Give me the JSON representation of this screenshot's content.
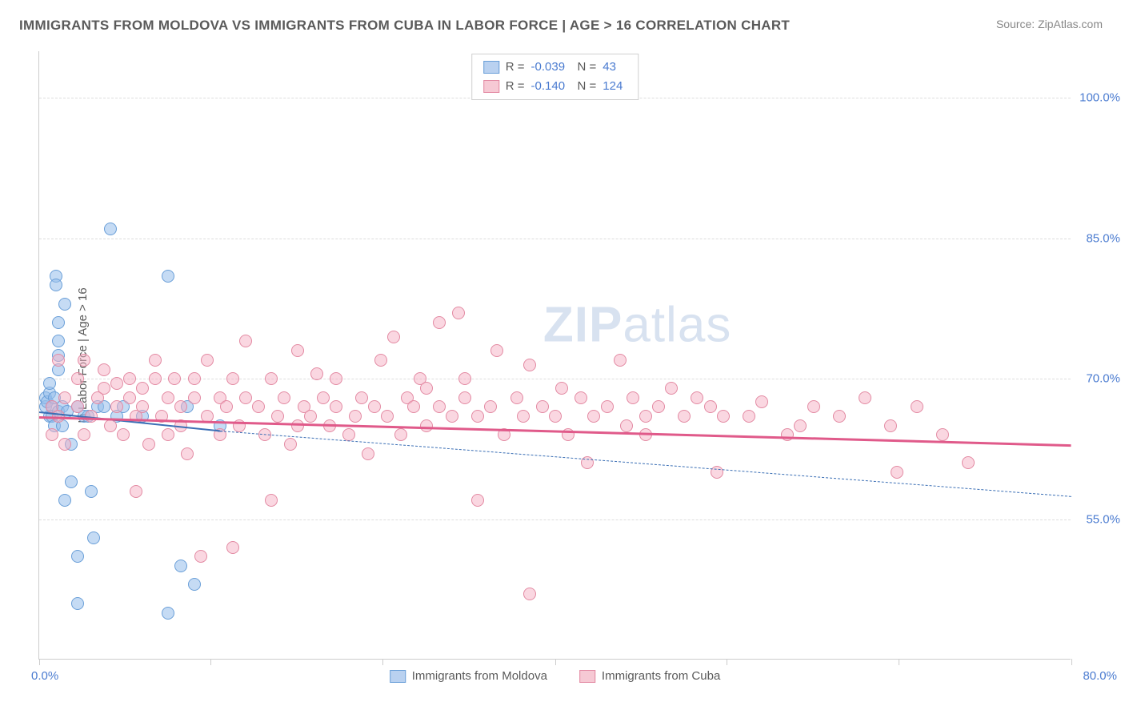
{
  "title": "IMMIGRANTS FROM MOLDOVA VS IMMIGRANTS FROM CUBA IN LABOR FORCE | AGE > 16 CORRELATION CHART",
  "source": "Source: ZipAtlas.com",
  "y_axis_label": "In Labor Force | Age > 16",
  "watermark_bold": "ZIP",
  "watermark_rest": "atlas",
  "chart": {
    "type": "scatter",
    "xlim": [
      0,
      80
    ],
    "ylim": [
      40,
      105
    ],
    "x_min_label": "0.0%",
    "x_max_label": "80.0%",
    "yticks": [
      55.0,
      70.0,
      85.0,
      100.0
    ],
    "ytick_labels": [
      "55.0%",
      "70.0%",
      "85.0%",
      "100.0%"
    ],
    "xtick_positions": [
      0,
      13.3,
      26.6,
      40,
      53.3,
      66.6,
      80
    ],
    "grid_color": "#dddddd",
    "background_color": "#ffffff",
    "marker_radius": 8,
    "marker_border_width": 1.5,
    "series": [
      {
        "name": "Immigrants from Moldova",
        "label": "Immigrants from Moldova",
        "fill": "#b9d1f0",
        "fill_alpha": "rgba(150,190,235,0.55)",
        "stroke": "#6a9fd8",
        "R_label": "R =",
        "R": "-0.039",
        "N_label": "N =",
        "N": "43",
        "trend": {
          "x1": 0,
          "y1": 66.5,
          "x2": 14,
          "y2": 64.5,
          "dash_to_x": 80,
          "dash_to_y": 57.5,
          "color": "#3b6fb5",
          "width": 2
        },
        "points": [
          [
            0.5,
            67
          ],
          [
            0.5,
            68
          ],
          [
            0.6,
            67.5
          ],
          [
            0.8,
            66
          ],
          [
            0.8,
            68.5
          ],
          [
            0.8,
            69.5
          ],
          [
            1,
            67
          ],
          [
            1,
            66
          ],
          [
            1.2,
            65
          ],
          [
            1.2,
            68
          ],
          [
            1.3,
            81
          ],
          [
            1.3,
            80
          ],
          [
            1.5,
            71
          ],
          [
            1.5,
            72.5
          ],
          [
            1.5,
            74
          ],
          [
            1.5,
            76
          ],
          [
            1.5,
            66.5
          ],
          [
            1.8,
            67
          ],
          [
            1.8,
            65
          ],
          [
            2,
            78
          ],
          [
            2,
            57
          ],
          [
            2.2,
            66.5
          ],
          [
            2.5,
            63
          ],
          [
            2.5,
            59
          ],
          [
            3,
            67
          ],
          [
            3,
            51
          ],
          [
            3,
            46
          ],
          [
            3.5,
            66
          ],
          [
            3.8,
            66
          ],
          [
            4,
            58
          ],
          [
            4.2,
            53
          ],
          [
            4.5,
            67
          ],
          [
            5,
            67
          ],
          [
            5.5,
            86
          ],
          [
            6,
            66
          ],
          [
            6.5,
            67
          ],
          [
            8,
            66
          ],
          [
            10,
            81
          ],
          [
            10,
            45
          ],
          [
            11,
            50
          ],
          [
            11.5,
            67
          ],
          [
            12,
            48
          ],
          [
            14,
            65
          ]
        ]
      },
      {
        "name": "Immigrants from Cuba",
        "label": "Immigrants from Cuba",
        "fill": "#f6c9d4",
        "fill_alpha": "rgba(245,175,195,0.5)",
        "stroke": "#e38aa3",
        "R_label": "R =",
        "R": "-0.140",
        "N_label": "N =",
        "N": "124",
        "trend": {
          "x1": 0,
          "y1": 66.0,
          "x2": 80,
          "y2": 63.0,
          "color": "#e05a8a",
          "width": 2.5
        },
        "points": [
          [
            1,
            64
          ],
          [
            1,
            67
          ],
          [
            1.5,
            66
          ],
          [
            1.5,
            72
          ],
          [
            2,
            63
          ],
          [
            2,
            68
          ],
          [
            3,
            67
          ],
          [
            3,
            70
          ],
          [
            3.5,
            64
          ],
          [
            3.5,
            72
          ],
          [
            4,
            66
          ],
          [
            4.5,
            68
          ],
          [
            5,
            69
          ],
          [
            5,
            71
          ],
          [
            5.5,
            65
          ],
          [
            6,
            67
          ],
          [
            6,
            69.5
          ],
          [
            6.5,
            64
          ],
          [
            7,
            68
          ],
          [
            7,
            70
          ],
          [
            7.5,
            58
          ],
          [
            7.5,
            66
          ],
          [
            8,
            67
          ],
          [
            8,
            69
          ],
          [
            8.5,
            63
          ],
          [
            9,
            70
          ],
          [
            9,
            72
          ],
          [
            9.5,
            66
          ],
          [
            10,
            64
          ],
          [
            10,
            68
          ],
          [
            10.5,
            70
          ],
          [
            11,
            67
          ],
          [
            11,
            65
          ],
          [
            11.5,
            62
          ],
          [
            12,
            68
          ],
          [
            12,
            70
          ],
          [
            12.5,
            51
          ],
          [
            13,
            66
          ],
          [
            13,
            72
          ],
          [
            14,
            64
          ],
          [
            14,
            68
          ],
          [
            14.5,
            67
          ],
          [
            15,
            52
          ],
          [
            15,
            70
          ],
          [
            15.5,
            65
          ],
          [
            16,
            68
          ],
          [
            16,
            74
          ],
          [
            17,
            67
          ],
          [
            17.5,
            64
          ],
          [
            18,
            57
          ],
          [
            18,
            70
          ],
          [
            18.5,
            66
          ],
          [
            19,
            68
          ],
          [
            19.5,
            63
          ],
          [
            20,
            65
          ],
          [
            20,
            73
          ],
          [
            20.5,
            67
          ],
          [
            21,
            66
          ],
          [
            21.5,
            70.5
          ],
          [
            22,
            68
          ],
          [
            22.5,
            65
          ],
          [
            23,
            67
          ],
          [
            23,
            70
          ],
          [
            24,
            64
          ],
          [
            24.5,
            66
          ],
          [
            25,
            68
          ],
          [
            25.5,
            62
          ],
          [
            26,
            67
          ],
          [
            26.5,
            72
          ],
          [
            27,
            66
          ],
          [
            27.5,
            74.5
          ],
          [
            28,
            64
          ],
          [
            28.5,
            68
          ],
          [
            29,
            67
          ],
          [
            29.5,
            70
          ],
          [
            30,
            65
          ],
          [
            30,
            69
          ],
          [
            31,
            67
          ],
          [
            31,
            76
          ],
          [
            32,
            66
          ],
          [
            32.5,
            77
          ],
          [
            33,
            68
          ],
          [
            33,
            70
          ],
          [
            34,
            57
          ],
          [
            34,
            66
          ],
          [
            35,
            67
          ],
          [
            35.5,
            73
          ],
          [
            36,
            64
          ],
          [
            37,
            68
          ],
          [
            37.5,
            66
          ],
          [
            38,
            71.5
          ],
          [
            38,
            47
          ],
          [
            39,
            67
          ],
          [
            40,
            66
          ],
          [
            40.5,
            69
          ],
          [
            41,
            64
          ],
          [
            42,
            68
          ],
          [
            42.5,
            61
          ],
          [
            43,
            66
          ],
          [
            44,
            67
          ],
          [
            45,
            72
          ],
          [
            45.5,
            65
          ],
          [
            46,
            68
          ],
          [
            47,
            66
          ],
          [
            47,
            64
          ],
          [
            48,
            67
          ],
          [
            49,
            69
          ],
          [
            50,
            66
          ],
          [
            51,
            68
          ],
          [
            52,
            67
          ],
          [
            52.5,
            60
          ],
          [
            53,
            66
          ],
          [
            55,
            66
          ],
          [
            56,
            67.5
          ],
          [
            58,
            64
          ],
          [
            59,
            65
          ],
          [
            60,
            67
          ],
          [
            62,
            66
          ],
          [
            64,
            68
          ],
          [
            66,
            65
          ],
          [
            66.5,
            60
          ],
          [
            68,
            67
          ],
          [
            70,
            64
          ],
          [
            72,
            61
          ]
        ]
      }
    ]
  },
  "colors": {
    "title": "#5a5a5a",
    "source": "#888888",
    "axis_value": "#4a7bd0",
    "axis_label": "#5a5a5a"
  }
}
